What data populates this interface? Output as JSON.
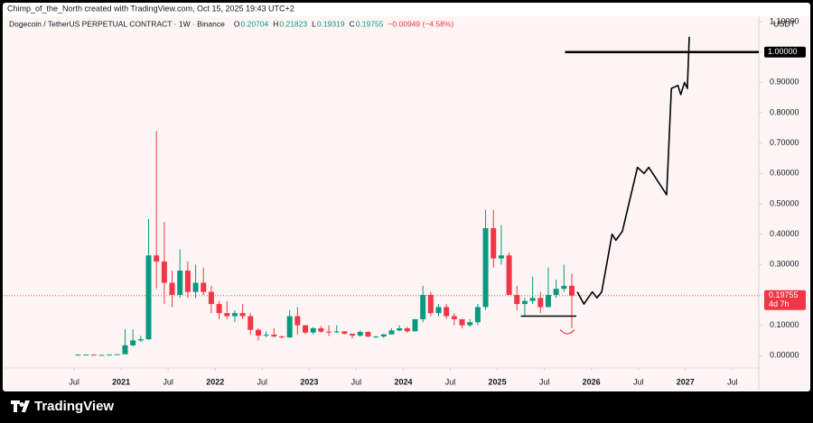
{
  "header": {
    "credit": "Chimp_of_the_North created with TradingView.com, Oct 15, 2025 19:43 UTC+2",
    "brand": "TradingView"
  },
  "chart_data": {
    "type": "candlestick",
    "title": "Dogecoin / TetherUS PERPETUAL CONTRACT · 1W · Binance",
    "ohlc_labels": {
      "open": 0.20704,
      "high": 0.21823,
      "low": 0.19319,
      "close": 0.19755,
      "change": {
        "value": -0.00949,
        "label": "−0.00949 (−4.58%)"
      }
    },
    "o_prefix": "O",
    "h_prefix": "H",
    "l_prefix": "L",
    "c_prefix": "C",
    "unit": "USDT",
    "up_color": "#089981",
    "down_color": "#f23645",
    "x": [
      "2020-07",
      "2020-08",
      "2020-09",
      "2020-10",
      "2020-11",
      "2020-12",
      "2021-01",
      "2021-02",
      "2021-03",
      "2021-04",
      "2021-05",
      "2021-06",
      "2021-07",
      "2021-08",
      "2021-09",
      "2021-10",
      "2021-11",
      "2021-12",
      "2022-01",
      "2022-02",
      "2022-03",
      "2022-04",
      "2022-05",
      "2022-06",
      "2022-07",
      "2022-08",
      "2022-09",
      "2022-10",
      "2022-11",
      "2022-12",
      "2023-01",
      "2023-02",
      "2023-03",
      "2023-04",
      "2023-05",
      "2023-06",
      "2023-07",
      "2023-08",
      "2023-09",
      "2023-10",
      "2023-11",
      "2023-12",
      "2024-01",
      "2024-02",
      "2024-03",
      "2024-04",
      "2024-05",
      "2024-06",
      "2024-07",
      "2024-08",
      "2024-09",
      "2024-10",
      "2024-11",
      "2024-12",
      "2025-01",
      "2025-02",
      "2025-03",
      "2025-04",
      "2025-05",
      "2025-06",
      "2025-07",
      "2025-08",
      "2025-09",
      "2025-10"
    ],
    "open": [
      0.0025,
      0.0033,
      0.0034,
      0.0026,
      0.0026,
      0.0034,
      0.0047,
      0.034,
      0.05,
      0.054,
      0.33,
      0.31,
      0.24,
      0.2,
      0.28,
      0.21,
      0.24,
      0.21,
      0.17,
      0.14,
      0.13,
      0.14,
      0.13,
      0.085,
      0.066,
      0.069,
      0.063,
      0.06,
      0.13,
      0.1,
      0.076,
      0.09,
      0.079,
      0.077,
      0.08,
      0.072,
      0.066,
      0.078,
      0.063,
      0.063,
      0.07,
      0.083,
      0.09,
      0.08,
      0.12,
      0.2,
      0.14,
      0.16,
      0.13,
      0.12,
      0.1,
      0.11,
      0.16,
      0.42,
      0.32,
      0.33,
      0.2,
      0.17,
      0.18,
      0.19,
      0.16,
      0.2,
      0.22,
      0.23
    ],
    "high": [
      0.0045,
      0.004,
      0.0036,
      0.0028,
      0.004,
      0.0047,
      0.087,
      0.086,
      0.065,
      0.45,
      0.74,
      0.44,
      0.28,
      0.35,
      0.31,
      0.3,
      0.29,
      0.23,
      0.18,
      0.18,
      0.15,
      0.17,
      0.14,
      0.09,
      0.08,
      0.09,
      0.066,
      0.15,
      0.16,
      0.1,
      0.095,
      0.098,
      0.1,
      0.1,
      0.08,
      0.072,
      0.083,
      0.08,
      0.065,
      0.072,
      0.09,
      0.1,
      0.095,
      0.12,
      0.23,
      0.21,
      0.17,
      0.17,
      0.14,
      0.12,
      0.12,
      0.17,
      0.48,
      0.48,
      0.43,
      0.34,
      0.23,
      0.19,
      0.26,
      0.21,
      0.29,
      0.25,
      0.3,
      0.27
    ],
    "low": [
      0.0025,
      0.003,
      0.0026,
      0.0025,
      0.0025,
      0.003,
      0.0046,
      0.03,
      0.045,
      0.052,
      0.22,
      0.17,
      0.16,
      0.19,
      0.19,
      0.19,
      0.2,
      0.14,
      0.12,
      0.12,
      0.11,
      0.12,
      0.07,
      0.05,
      0.06,
      0.061,
      0.057,
      0.058,
      0.07,
      0.07,
      0.07,
      0.075,
      0.065,
      0.075,
      0.07,
      0.057,
      0.062,
      0.06,
      0.058,
      0.058,
      0.07,
      0.08,
      0.075,
      0.08,
      0.11,
      0.13,
      0.13,
      0.12,
      0.1,
      0.09,
      0.095,
      0.1,
      0.15,
      0.29,
      0.3,
      0.2,
      0.15,
      0.13,
      0.17,
      0.14,
      0.16,
      0.19,
      0.21,
      0.09
    ],
    "close": [
      0.0033,
      0.0034,
      0.0026,
      0.0026,
      0.0034,
      0.0047,
      0.034,
      0.05,
      0.054,
      0.33,
      0.31,
      0.24,
      0.2,
      0.28,
      0.21,
      0.24,
      0.21,
      0.17,
      0.14,
      0.13,
      0.14,
      0.13,
      0.085,
      0.066,
      0.069,
      0.063,
      0.06,
      0.13,
      0.1,
      0.076,
      0.09,
      0.079,
      0.077,
      0.08,
      0.072,
      0.066,
      0.078,
      0.063,
      0.063,
      0.07,
      0.083,
      0.09,
      0.08,
      0.12,
      0.2,
      0.14,
      0.16,
      0.13,
      0.12,
      0.1,
      0.11,
      0.16,
      0.42,
      0.32,
      0.33,
      0.2,
      0.17,
      0.18,
      0.19,
      0.16,
      0.2,
      0.22,
      0.23,
      0.19755
    ],
    "last_price": {
      "value": 0.19755,
      "label": "0.19755",
      "countdown": "4d 7h"
    },
    "projection": {
      "color": "#000000",
      "x": [
        2025.85,
        2025.92,
        2026.01,
        2026.06,
        2026.11,
        2026.22,
        2026.26,
        2026.33,
        2026.49,
        2026.56,
        2026.61,
        2026.8,
        2026.85,
        2026.92,
        2026.95,
        2026.99,
        2027.02,
        2027.04
      ],
      "values": [
        0.21,
        0.17,
        0.21,
        0.19,
        0.21,
        0.4,
        0.38,
        0.41,
        0.62,
        0.6,
        0.62,
        0.53,
        0.88,
        0.89,
        0.86,
        0.9,
        0.88,
        1.05
      ]
    },
    "target_line": {
      "value": 1.0,
      "label": "1.00000",
      "x_start": 2025.72
    },
    "support_line": {
      "value": 0.13,
      "x": [
        2025.25,
        2025.84
      ]
    },
    "xlim": [
      2019.75,
      2027.78
    ],
    "ylim": [
      -0.115,
      1.118
    ],
    "xticks": [
      {
        "value": 2020.5,
        "label": "Jul"
      },
      2021,
      {
        "value": 2021.5,
        "label": "Jul"
      },
      2022,
      {
        "value": 2022.5,
        "label": "Jul"
      },
      2023,
      {
        "value": 2023.5,
        "label": "Jul"
      },
      2024,
      {
        "value": 2024.5,
        "label": "Jul"
      },
      2025,
      {
        "value": 2025.5,
        "label": "Jul"
      },
      2026,
      {
        "value": 2026.5,
        "label": "Jul"
      },
      2027,
      {
        "value": 2027.5,
        "label": "Jul"
      }
    ],
    "yticks": [
      {
        "value": 0,
        "label": "0.00000"
      },
      {
        "value": 0.1,
        "label": "0.10000"
      },
      {
        "value": 0.2,
        "label": "0.20000"
      },
      {
        "value": 0.3,
        "label": "0.30000"
      },
      {
        "value": 0.4,
        "label": "0.40000"
      },
      {
        "value": 0.5,
        "label": "0.50000"
      },
      {
        "value": 0.6,
        "label": "0.60000"
      },
      {
        "value": 0.7,
        "label": "0.70000"
      },
      {
        "value": 0.8,
        "label": "0.80000"
      },
      {
        "value": 0.9,
        "label": "0.90000"
      },
      {
        "value": 1.0,
        "label": "1.00000"
      },
      {
        "value": 1.1,
        "label": "1.10000"
      }
    ]
  }
}
